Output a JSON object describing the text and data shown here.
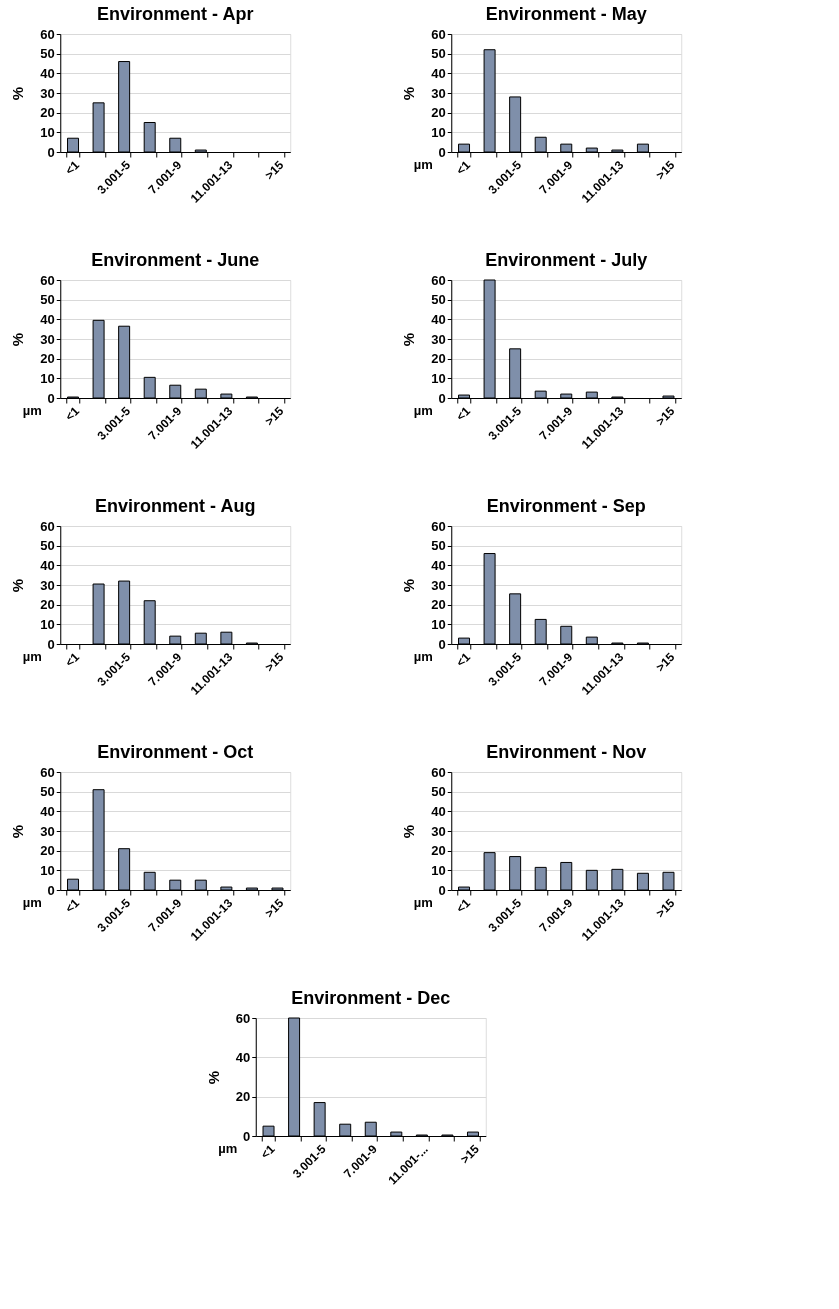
{
  "chart_data": [
    {
      "type": "bar",
      "title": "Environment - Apr",
      "ylabel": "%",
      "categories": [
        "<1",
        null,
        "3.001-5",
        null,
        "7.001-9",
        null,
        "11.001-13",
        null,
        ">15"
      ],
      "values": [
        7,
        25,
        46,
        15,
        7,
        1,
        0,
        0,
        0
      ],
      "color": "#7f8faa",
      "ylim": [
        0,
        60
      ],
      "yticks": [
        0,
        10,
        20,
        30,
        40,
        50,
        60
      ],
      "grid": "y"
    },
    {
      "type": "bar",
      "title": "Environment - May",
      "ylabel": "%",
      "xlabel": "µm",
      "categories": [
        "<1",
        null,
        "3.001-5",
        null,
        "7.001-9",
        null,
        "11.001-13",
        null,
        ">15"
      ],
      "values": [
        4,
        52,
        28,
        7.5,
        4,
        2,
        1,
        4,
        0
      ],
      "color": "#7f8faa",
      "ylim": [
        0,
        60
      ],
      "yticks": [
        0,
        10,
        20,
        30,
        40,
        50,
        60
      ],
      "grid": "y"
    },
    {
      "type": "bar",
      "title": "Environment - June",
      "ylabel": "%",
      "xlabel": "µm",
      "categories": [
        "<1",
        null,
        "3.001-5",
        null,
        "7.001-9",
        null,
        "11.001-13",
        null,
        ">15"
      ],
      "values": [
        0.5,
        39.5,
        36.5,
        10.5,
        6.5,
        4.5,
        2,
        0.5,
        0
      ],
      "color": "#7f8faa",
      "ylim": [
        0,
        60
      ],
      "yticks": [
        0,
        10,
        20,
        30,
        40,
        50,
        60
      ],
      "grid": "y"
    },
    {
      "type": "bar",
      "title": "Environment - July",
      "ylabel": "%",
      "xlabel": "µm",
      "categories": [
        "<1",
        null,
        "3.001-5",
        null,
        "7.001-9",
        null,
        "11.001-13",
        null,
        ">15"
      ],
      "values": [
        1.5,
        60,
        25,
        3.5,
        2,
        3,
        0.5,
        0,
        1
      ],
      "color": "#7f8faa",
      "ylim": [
        0,
        60
      ],
      "yticks": [
        0,
        10,
        20,
        30,
        40,
        50,
        60
      ],
      "grid": "y"
    },
    {
      "type": "bar",
      "title": "Environment - Aug",
      "ylabel": "%",
      "xlabel": "µm",
      "categories": [
        "<1",
        null,
        "3.001-5",
        null,
        "7.001-9",
        null,
        "11.001-13",
        null,
        ">15"
      ],
      "values": [
        0,
        30.5,
        32,
        22,
        4,
        5.5,
        6,
        0.5,
        0
      ],
      "color": "#7f8faa",
      "ylim": [
        0,
        60
      ],
      "yticks": [
        0,
        10,
        20,
        30,
        40,
        50,
        60
      ],
      "grid": "y"
    },
    {
      "type": "bar",
      "title": "Environment - Sep",
      "ylabel": "%",
      "xlabel": "µm",
      "categories": [
        "<1",
        null,
        "3.001-5",
        null,
        "7.001-9",
        null,
        "11.001-13",
        null,
        ">15"
      ],
      "values": [
        3,
        46,
        25.5,
        12.5,
        9,
        3.5,
        0.5,
        0.5,
        0
      ],
      "color": "#7f8faa",
      "ylim": [
        0,
        60
      ],
      "yticks": [
        0,
        10,
        20,
        30,
        40,
        50,
        60
      ],
      "grid": "y"
    },
    {
      "type": "bar",
      "title": "Environment - Oct",
      "ylabel": "%",
      "xlabel": "µm",
      "categories": [
        "<1",
        null,
        "3.001-5",
        null,
        "7.001-9",
        null,
        "11.001-13",
        null,
        ">15"
      ],
      "values": [
        5.5,
        51,
        21,
        9,
        5,
        5,
        1.5,
        1,
        1
      ],
      "color": "#7f8faa",
      "ylim": [
        0,
        60
      ],
      "yticks": [
        0,
        10,
        20,
        30,
        40,
        50,
        60
      ],
      "grid": "y"
    },
    {
      "type": "bar",
      "title": "Environment - Nov",
      "ylabel": "%",
      "xlabel": "µm",
      "categories": [
        "<1",
        null,
        "3.001-5",
        null,
        "7.001-9",
        null,
        "11.001-13",
        null,
        ">15"
      ],
      "values": [
        1.5,
        19,
        17,
        11.5,
        14,
        10,
        10.5,
        8.5,
        9
      ],
      "color": "#7f8faa",
      "ylim": [
        0,
        60
      ],
      "yticks": [
        0,
        10,
        20,
        30,
        40,
        50,
        60
      ],
      "grid": "y"
    },
    {
      "type": "bar",
      "title": "Environment - Dec",
      "ylabel": "%",
      "xlabel": "µm",
      "categories": [
        "<1",
        null,
        "3.001-5",
        null,
        "7.001-9",
        null,
        "11.001-...",
        null,
        ">15"
      ],
      "values": [
        5,
        60,
        17,
        6,
        7,
        2,
        0.5,
        0.5,
        2
      ],
      "color": "#7f8faa",
      "ylim": [
        0,
        60
      ],
      "yticks": [
        0,
        20,
        40,
        60
      ],
      "grid": "y"
    }
  ]
}
